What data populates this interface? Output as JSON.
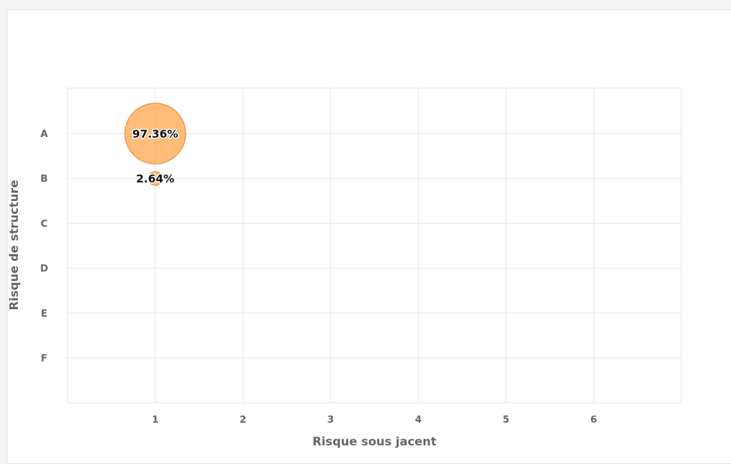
{
  "chart_data": {
    "type": "scatter",
    "title": "",
    "xlabel": "Risque sous jacent",
    "ylabel": "Risque de structure",
    "x_categories": [
      "1",
      "2",
      "3",
      "4",
      "5",
      "6"
    ],
    "y_categories": [
      "A",
      "B",
      "C",
      "D",
      "E",
      "F"
    ],
    "xlim": [
      0,
      7
    ],
    "grid": true,
    "legend": "none",
    "bubble_color": "#ffa64d",
    "bubble_stroke": "#f0964a",
    "points": [
      {
        "x": "1",
        "y": "A",
        "value": 97.36,
        "label": "97.36%"
      },
      {
        "x": "1",
        "y": "B",
        "value": 2.64,
        "label": "2.64%"
      }
    ]
  }
}
